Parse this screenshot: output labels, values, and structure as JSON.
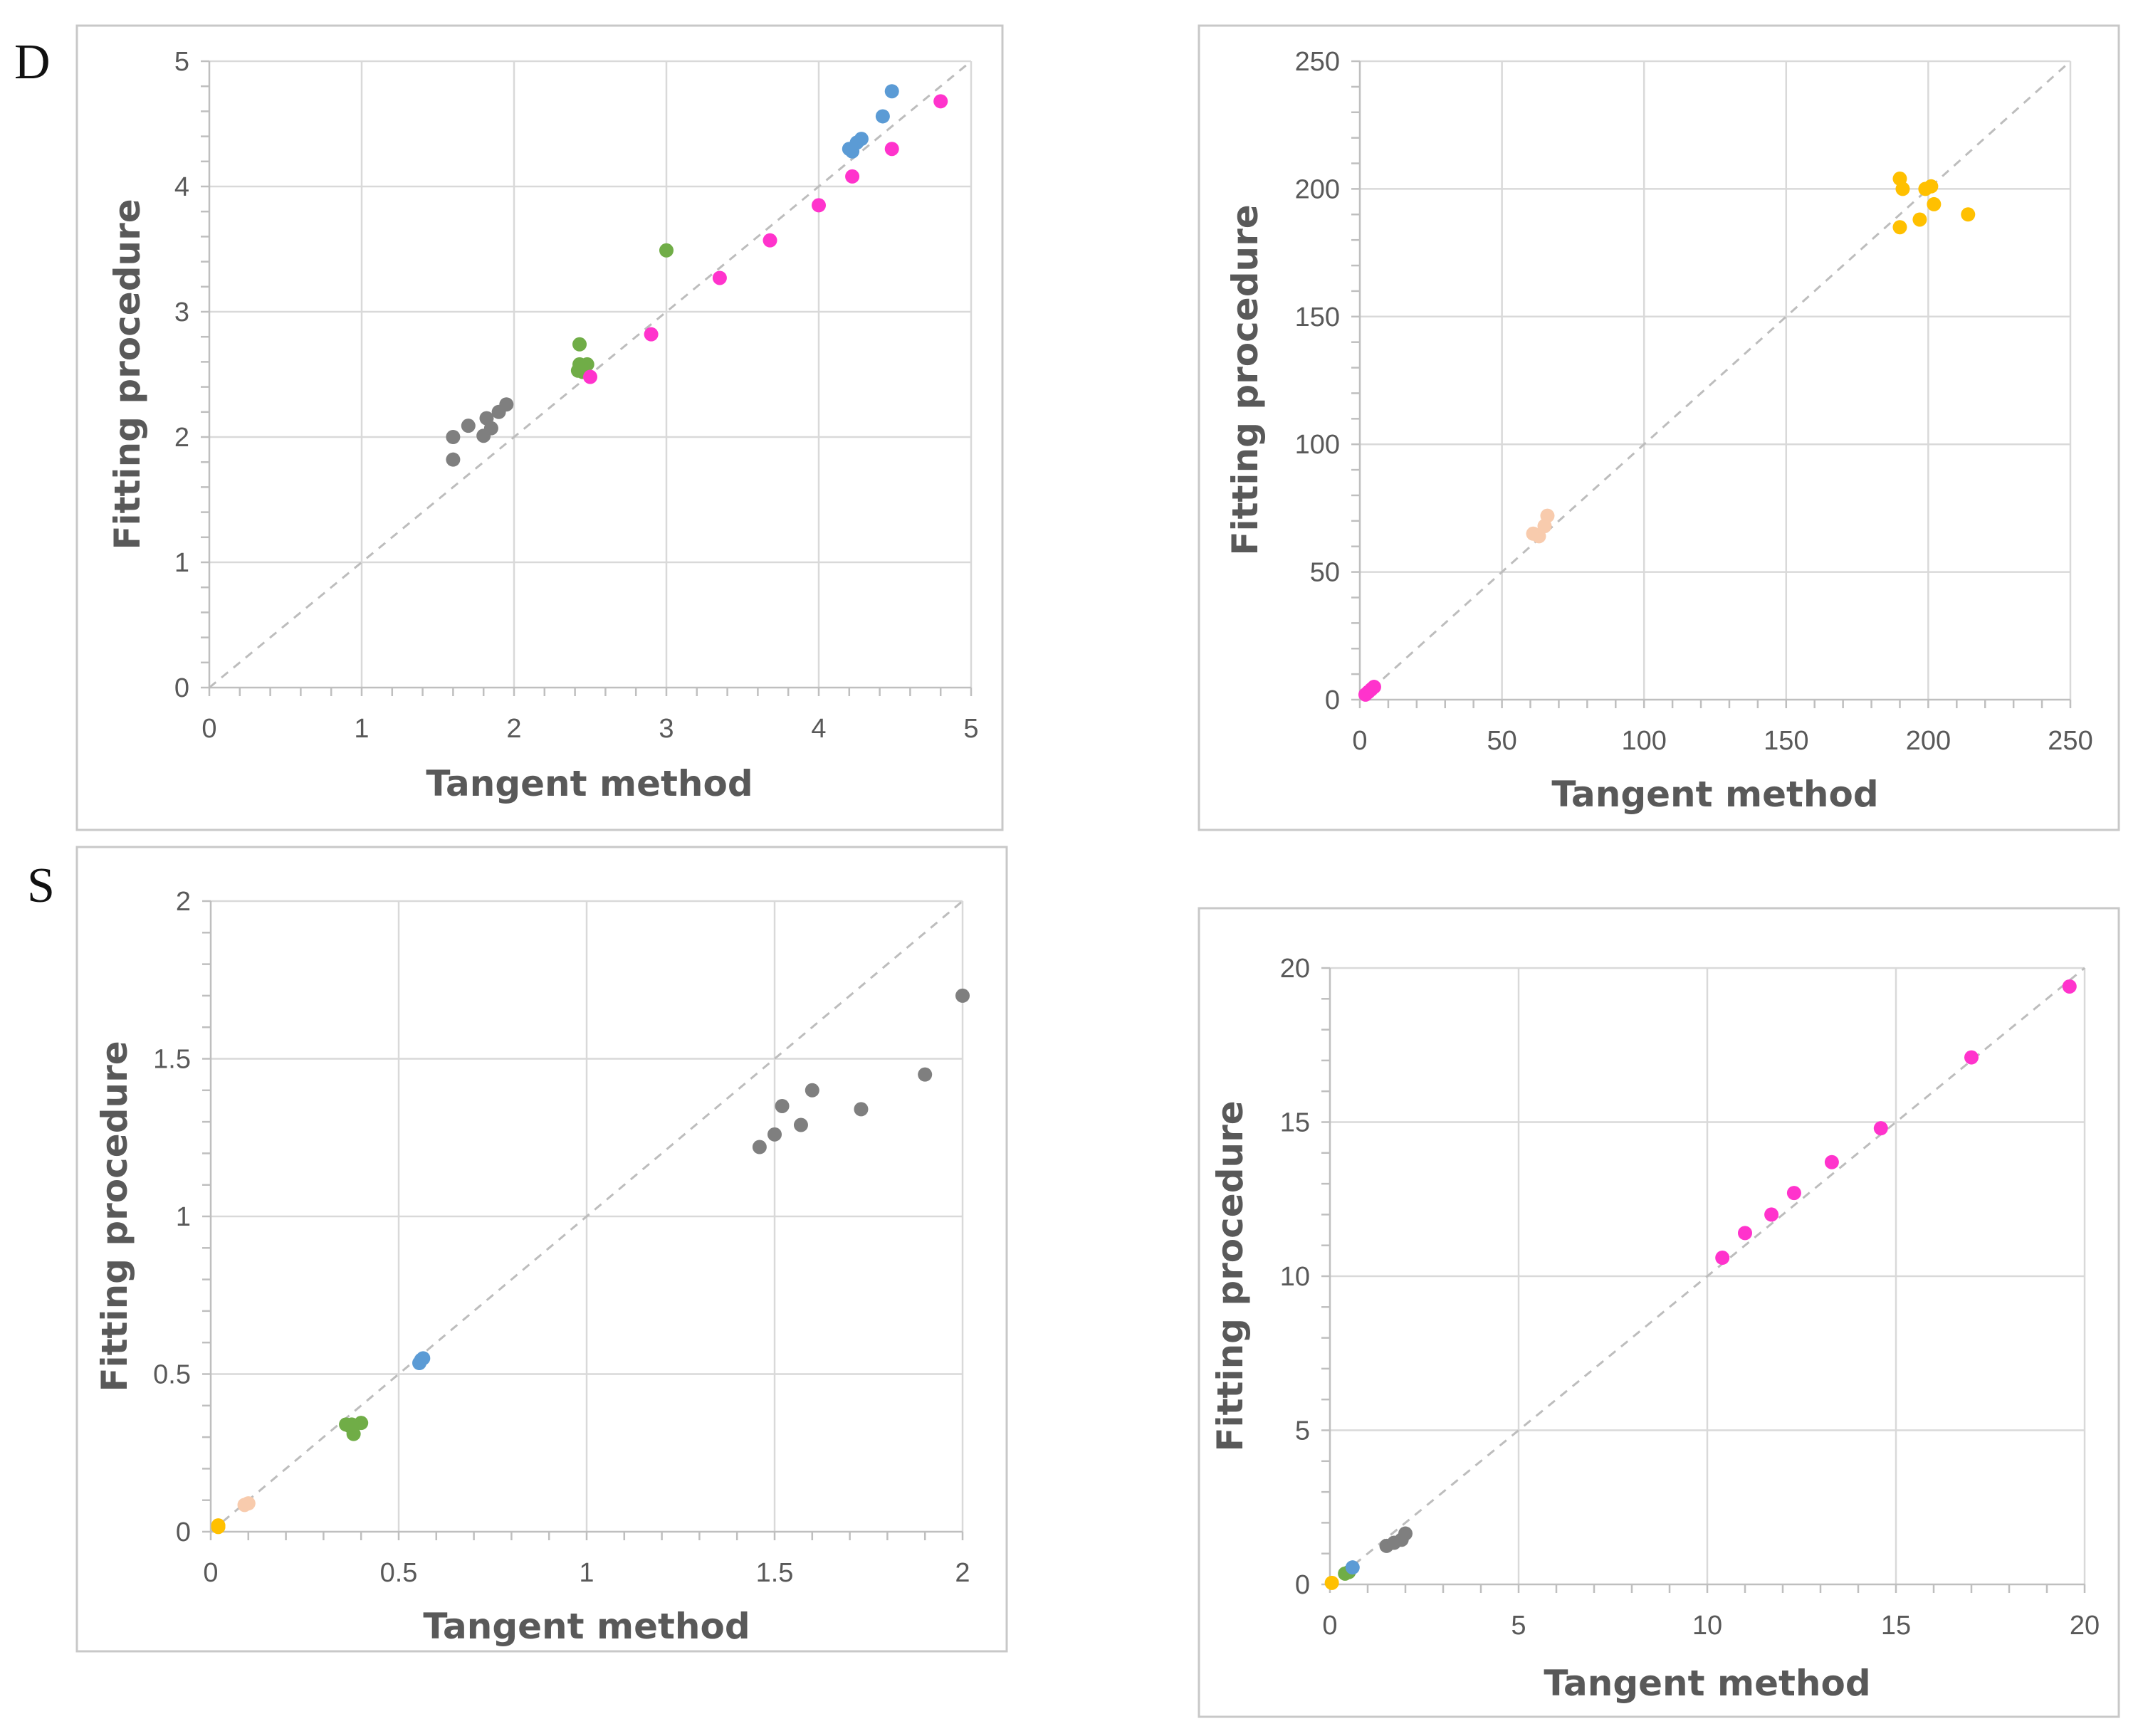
{
  "panel_labels": {
    "top": "D",
    "bottom": "S"
  },
  "chart_data": [
    {
      "type": "scatter",
      "title": "",
      "xlabel": "Tangent method",
      "ylabel": "Fitting procedure",
      "xlim": [
        0,
        5
      ],
      "ylim": [
        0,
        5
      ],
      "xticks": [
        "0",
        "1",
        "2",
        "3",
        "4",
        "5"
      ],
      "yticks": [
        "0",
        "1",
        "2",
        "3",
        "4",
        "5"
      ],
      "diagonal": true,
      "series": [
        {
          "name": "gray",
          "color": "#7f7f7f",
          "x": [
            1.6,
            1.6,
            1.7,
            1.82,
            1.85,
            1.9,
            1.95,
            1.8
          ],
          "y": [
            2.0,
            1.82,
            2.09,
            2.15,
            2.07,
            2.2,
            2.26,
            2.01
          ]
        },
        {
          "name": "green",
          "color": "#70ad47",
          "x": [
            2.43,
            2.43,
            2.48,
            2.45,
            2.42,
            3.0
          ],
          "y": [
            2.74,
            2.58,
            2.58,
            2.52,
            2.53,
            3.49
          ]
        },
        {
          "name": "magenta",
          "color": "#ff33cc",
          "x": [
            2.5,
            2.9,
            3.35,
            3.68,
            4.0,
            4.22,
            4.48,
            4.8
          ],
          "y": [
            2.48,
            2.82,
            3.27,
            3.57,
            3.85,
            4.08,
            4.3,
            4.68
          ]
        },
        {
          "name": "blue",
          "color": "#5b9bd5",
          "x": [
            4.2,
            4.22,
            4.25,
            4.28,
            4.42,
            4.48
          ],
          "y": [
            4.3,
            4.28,
            4.35,
            4.38,
            4.56,
            4.76
          ]
        }
      ]
    },
    {
      "type": "scatter",
      "title": "",
      "xlabel": "Tangent method",
      "ylabel": "Fitting procedure",
      "xlim": [
        0,
        250
      ],
      "ylim": [
        0,
        250
      ],
      "xticks": [
        "0",
        "50",
        "100",
        "150",
        "200",
        "250"
      ],
      "yticks": [
        "0",
        "50",
        "100",
        "150",
        "200",
        "250"
      ],
      "diagonal": true,
      "series": [
        {
          "name": "magenta",
          "color": "#ff33cc",
          "x": [
            2,
            3,
            4,
            5
          ],
          "y": [
            2,
            3,
            4,
            5
          ]
        },
        {
          "name": "peach",
          "color": "#f8cbad",
          "x": [
            61,
            63,
            65,
            66
          ],
          "y": [
            65,
            64,
            68,
            72
          ]
        },
        {
          "name": "orange",
          "color": "#ffc000",
          "x": [
            190,
            191,
            190,
            197,
            199,
            201,
            202,
            214
          ],
          "y": [
            204,
            200,
            185,
            188,
            200,
            201,
            194,
            190
          ]
        }
      ]
    },
    {
      "type": "scatter",
      "title": "",
      "xlabel": "Tangent method",
      "ylabel": "Fitting procedure",
      "xlim": [
        0,
        2
      ],
      "ylim": [
        0,
        2
      ],
      "xticks": [
        "0",
        "0.5",
        "1",
        "1.5",
        "2"
      ],
      "yticks": [
        "0",
        "0.5",
        "1",
        "1.5",
        "2"
      ],
      "diagonal": true,
      "series": [
        {
          "name": "orange",
          "color": "#ffc000",
          "x": [
            0.02,
            0.02
          ],
          "y": [
            0.015,
            0.02
          ]
        },
        {
          "name": "peach",
          "color": "#f8cbad",
          "x": [
            0.09,
            0.1
          ],
          "y": [
            0.085,
            0.09
          ]
        },
        {
          "name": "green",
          "color": "#70ad47",
          "x": [
            0.36,
            0.37,
            0.38,
            0.4,
            0.375
          ],
          "y": [
            0.34,
            0.335,
            0.31,
            0.345,
            0.34
          ]
        },
        {
          "name": "blue",
          "color": "#5b9bd5",
          "x": [
            0.555,
            0.56,
            0.565
          ],
          "y": [
            0.535,
            0.545,
            0.55
          ]
        },
        {
          "name": "gray",
          "color": "#7f7f7f",
          "x": [
            1.46,
            1.5,
            1.52,
            1.57,
            1.6,
            1.73,
            1.9,
            2.0
          ],
          "y": [
            1.22,
            1.26,
            1.35,
            1.29,
            1.4,
            1.34,
            1.45,
            1.7
          ]
        }
      ]
    },
    {
      "type": "scatter",
      "title": "",
      "xlabel": "Tangent method",
      "ylabel": "Fitting procedure",
      "xlim": [
        0,
        20
      ],
      "ylim": [
        0,
        20
      ],
      "xticks": [
        "0",
        "5",
        "10",
        "15",
        "20"
      ],
      "yticks": [
        "0",
        "5",
        "10",
        "15",
        "20"
      ],
      "diagonal": true,
      "series": [
        {
          "name": "orange",
          "color": "#ffc000",
          "x": [
            0.05
          ],
          "y": [
            0.05
          ]
        },
        {
          "name": "green",
          "color": "#70ad47",
          "x": [
            0.4,
            0.5
          ],
          "y": [
            0.35,
            0.4
          ]
        },
        {
          "name": "blue",
          "color": "#5b9bd5",
          "x": [
            0.6
          ],
          "y": [
            0.55
          ]
        },
        {
          "name": "gray",
          "color": "#7f7f7f",
          "x": [
            1.5,
            1.7,
            1.9,
            2.0
          ],
          "y": [
            1.25,
            1.35,
            1.45,
            1.65
          ]
        },
        {
          "name": "magenta",
          "color": "#ff33cc",
          "x": [
            10.4,
            11.0,
            11.7,
            12.3,
            13.3,
            14.6,
            17.0,
            19.6
          ],
          "y": [
            10.6,
            11.4,
            12.0,
            12.7,
            13.7,
            14.8,
            17.1,
            19.4
          ]
        }
      ]
    }
  ]
}
